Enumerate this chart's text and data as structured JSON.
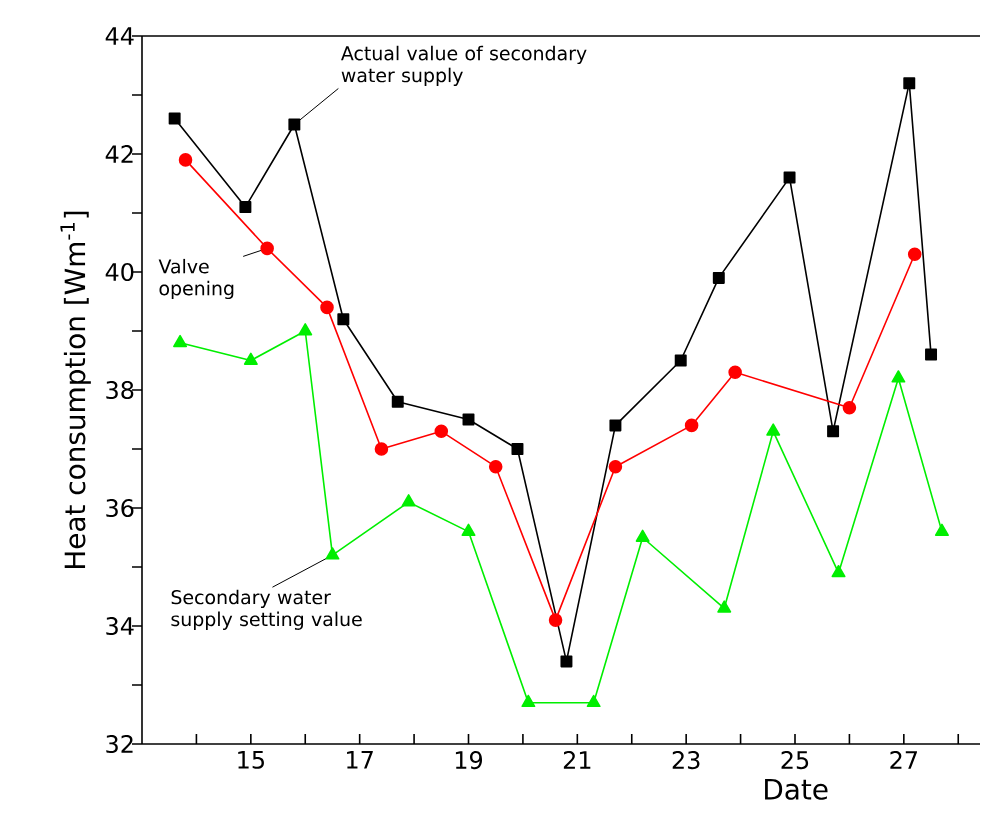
{
  "chart_data": {
    "type": "line",
    "xlabel": "Date",
    "ylabel": "Heat consumption [Wm$^{-1}$]",
    "xlim": [
      13,
      28.4
    ],
    "ylim": [
      32,
      44
    ],
    "xticks": [
      {
        "value": 14,
        "label": null
      },
      15,
      {
        "value": 16,
        "label": null
      },
      17,
      {
        "value": 18,
        "label": null
      },
      19,
      {
        "value": 20,
        "label": null
      },
      21,
      {
        "value": 22,
        "label": null
      },
      23,
      {
        "value": 24,
        "label": null
      },
      25,
      {
        "value": 26,
        "label": null
      },
      27,
      {
        "value": 28,
        "label": null
      }
    ],
    "yticks": [
      32,
      {
        "value": 33,
        "label": null
      },
      34,
      {
        "value": 35,
        "label": null
      },
      36,
      {
        "value": 37,
        "label": null
      },
      38,
      {
        "value": 39,
        "label": null
      },
      40,
      {
        "value": 41,
        "label": null
      },
      42,
      {
        "value": 43,
        "label": null
      },
      44
    ],
    "grid": false,
    "line_style": "solid",
    "series": [
      {
        "color": "#000000",
        "marker": "square",
        "x": [
          13.6,
          14.9,
          15.8,
          16.7,
          17.7,
          19.0,
          19.9,
          20.8,
          21.7,
          22.9,
          23.6,
          24.9,
          25.7,
          27.1,
          27.5
        ],
        "values": [
          42.6,
          41.1,
          42.5,
          39.2,
          37.8,
          37.5,
          37.0,
          33.4,
          37.4,
          38.5,
          39.9,
          41.6,
          37.3,
          43.2,
          38.6
        ]
      },
      {
        "color": "#ff0000",
        "marker": "circle",
        "x": [
          13.8,
          15.3,
          16.4,
          17.4,
          18.5,
          19.5,
          20.6,
          21.7,
          23.1,
          23.9,
          26.0,
          27.2
        ],
        "values": [
          41.9,
          40.4,
          39.4,
          37.0,
          37.3,
          36.7,
          34.1,
          36.7,
          37.4,
          38.3,
          37.7,
          40.3
        ]
      },
      {
        "color": "#00ee00",
        "marker": "triangle",
        "x": [
          13.7,
          15.0,
          16.0,
          16.5,
          17.9,
          19.0,
          20.1,
          21.3,
          22.2,
          23.7,
          24.6,
          25.8,
          26.9,
          27.7
        ],
        "values": [
          38.8,
          38.5,
          39.0,
          35.2,
          36.1,
          35.6,
          32.7,
          32.7,
          35.5,
          34.3,
          37.3,
          34.9,
          38.2,
          35.6
        ]
      }
    ],
    "annotations": [
      {
        "text": "Actual value of secondary water supply",
        "x": 15.8,
        "y": 42.5
      },
      {
        "text": "Valve opening",
        "x": 15.3,
        "y": 40.4
      },
      {
        "text": "Secondary water supply setting value",
        "x": 16.5,
        "y": 35.2
      }
    ]
  }
}
